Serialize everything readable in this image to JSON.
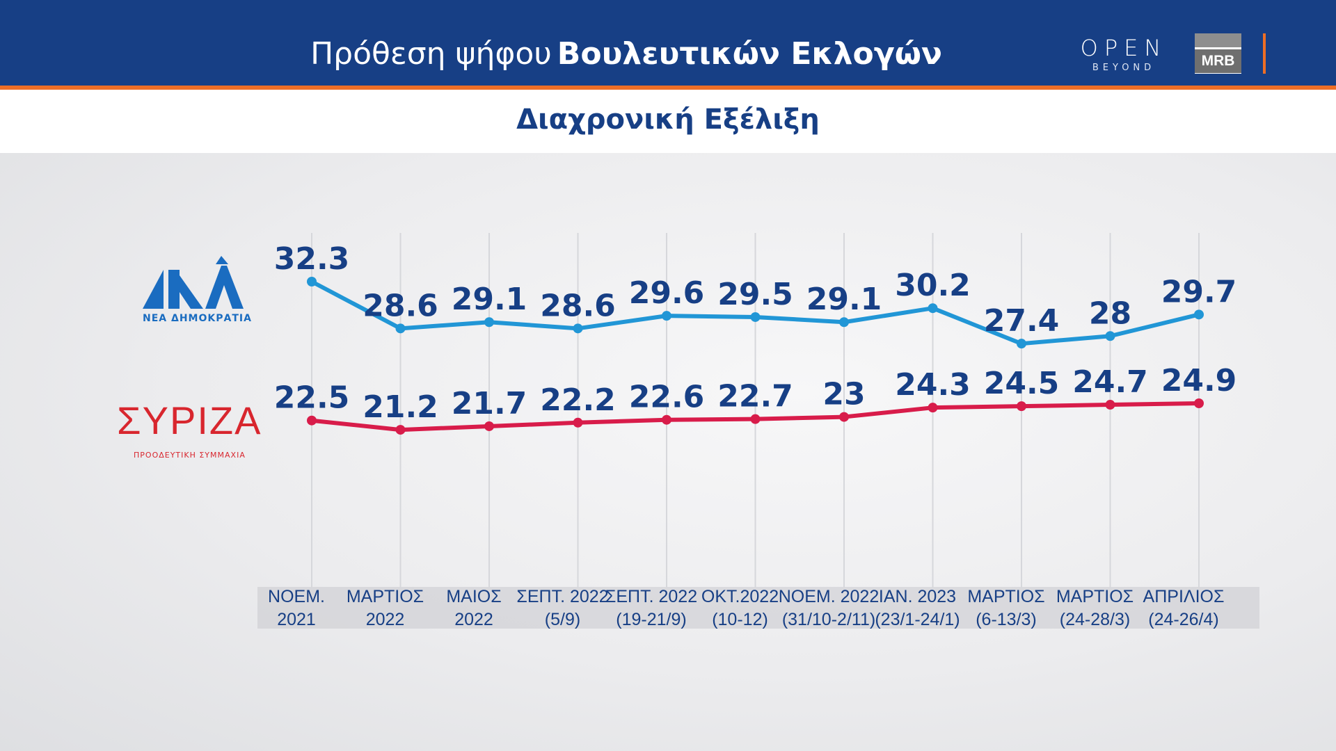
{
  "header": {
    "title_light": "Πρόθεση ψήφου",
    "title_bold": "Βουλευτικών Εκλογών",
    "open_logo": "OPEN",
    "open_sub": "BEYOND",
    "mrb_logo": "MRB",
    "colors": {
      "bar": "#173f85",
      "accent": "#ee6e25"
    }
  },
  "subtitle": "Διαχρονική Εξέλιξη",
  "logos": {
    "nd": {
      "main": "ΝΔ",
      "sub": "ΝΕΑ ΔΗΜΟΚΡΑΤΙΑ",
      "color": "#1a6cc0"
    },
    "syriza": {
      "main": "ΣΥΡΙΖΑ",
      "sub": "ΠΡΟΟΔΕΥΤΙΚΗ ΣΥΜΜΑΧΙΑ",
      "color": "#d8262e"
    }
  },
  "chart_data": {
    "type": "line",
    "categories": [
      [
        "ΝΟΕΜ.",
        "2021"
      ],
      [
        "ΜΑΡΤΙΟΣ",
        "2022"
      ],
      [
        "ΜΑΙΟΣ",
        "2022"
      ],
      [
        "ΣΕΠΤ. 2022",
        "(5/9)"
      ],
      [
        "ΣΕΠΤ. 2022",
        "(19-21/9)"
      ],
      [
        "ΟΚΤ.2022",
        "(10-12)"
      ],
      [
        "ΝΟΕΜ. 2022",
        "(31/10-2/11)"
      ],
      [
        "ΙΑΝ. 2023",
        "(23/1-24/1)"
      ],
      [
        "ΜΑΡΤΙΟΣ",
        "(6-13/3)"
      ],
      [
        "ΜΑΡΤΙΟΣ",
        "(24-28/3)"
      ],
      [
        "ΑΠΡΙΛΙΟΣ",
        "(24-26/4)"
      ]
    ],
    "series": [
      {
        "logo": "nd",
        "color": "#2196d6",
        "values": [
          32.3,
          28.6,
          29.1,
          28.6,
          29.6,
          29.5,
          29.1,
          30.2,
          27.4,
          28,
          29.7
        ],
        "labels": [
          "32.3",
          "28.6",
          "29.1",
          "28.6",
          "29.6",
          "29.5",
          "29.1",
          "30.2",
          "27.4",
          "28",
          "29.7"
        ]
      },
      {
        "logo": "syriza",
        "color": "#d81c4a",
        "values": [
          22.5,
          21.2,
          21.7,
          22.2,
          22.6,
          22.7,
          23,
          24.3,
          24.5,
          24.7,
          24.9
        ],
        "labels": [
          "22.5",
          "21.2",
          "21.7",
          "22.2",
          "22.6",
          "22.7",
          "23",
          "24.3",
          "24.5",
          "24.7",
          "24.9"
        ]
      }
    ],
    "label_color": "#173f85",
    "grid": "vertical",
    "legend": "left (party logos)"
  }
}
